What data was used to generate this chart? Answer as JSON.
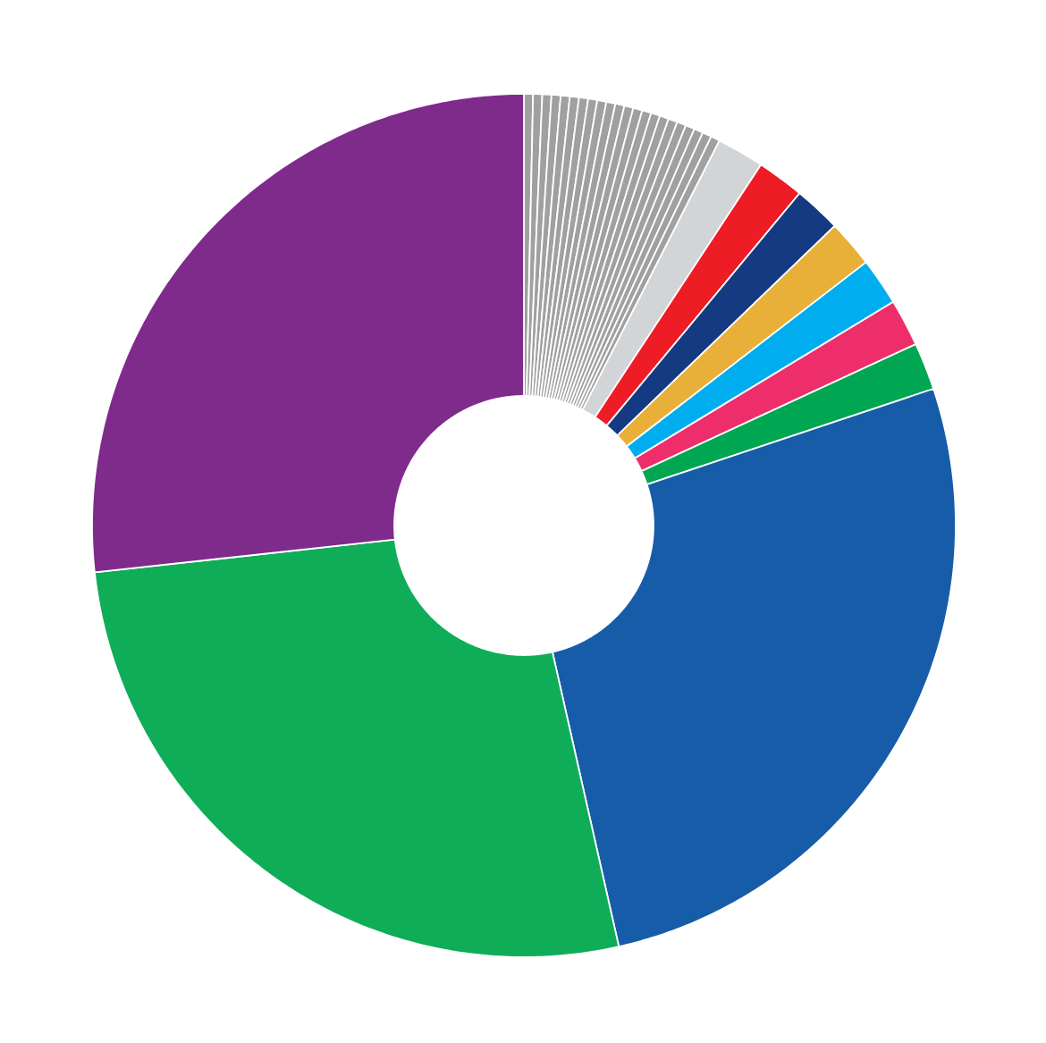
{
  "chart_data": {
    "type": "donut",
    "categories": [
      null,
      null,
      null,
      null,
      null,
      null,
      null,
      null,
      null,
      null,
      null,
      null,
      null,
      null,
      null,
      null,
      null,
      null,
      null,
      null,
      null,
      null,
      null,
      null,
      null,
      null,
      null,
      null,
      null,
      null,
      null,
      null
    ],
    "values": [
      0.34,
      0.34,
      0.34,
      0.34,
      0.34,
      0.34,
      0.34,
      0.34,
      0.34,
      0.34,
      0.34,
      0.34,
      0.34,
      0.34,
      0.34,
      0.34,
      0.34,
      0.34,
      0.34,
      0.34,
      0.34,
      0.34,
      1.77,
      1.77,
      1.77,
      1.77,
      1.77,
      1.77,
      1.77,
      26.6,
      26.8,
      26.73
    ],
    "colors": [
      "#a0a0a0",
      "#a0a0a0",
      "#a0a0a0",
      "#a0a0a0",
      "#a0a0a0",
      "#a0a0a0",
      "#a0a0a0",
      "#a0a0a0",
      "#a0a0a0",
      "#a0a0a0",
      "#a0a0a0",
      "#a0a0a0",
      "#a0a0a0",
      "#a0a0a0",
      "#a0a0a0",
      "#a0a0a0",
      "#a0a0a0",
      "#a0a0a0",
      "#a0a0a0",
      "#a0a0a0",
      "#a0a0a0",
      "#a0a0a0",
      "#d1d5d8",
      "#ee1c25",
      "#143a82",
      "#e8b038",
      "#00aeef",
      "#ee2e6a",
      "#00a651",
      "#175ca8",
      "#0fad58",
      "#7f2b8c"
    ]
  }
}
